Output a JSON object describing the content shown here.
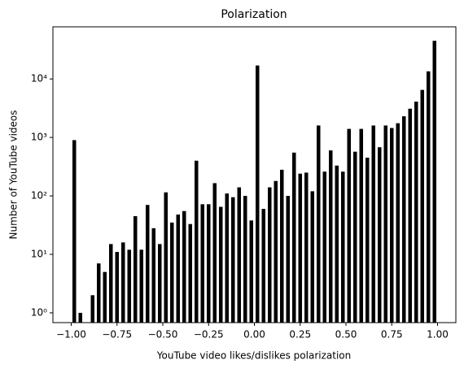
{
  "chart_data": {
    "type": "histogram",
    "title": "Polarization",
    "x_label": "YouTube video likes/dislikes polarization",
    "y_label": "Number of YouTube videos",
    "color": "#000000",
    "log_y": true,
    "rwidth": 0.6,
    "bins": [
      -1,
      -0.9667,
      -0.9333,
      -0.9,
      -0.8667,
      -0.8333,
      -0.8,
      -0.7667,
      -0.7333,
      -0.7,
      -0.6667,
      -0.6333,
      -0.6,
      -0.5667,
      -0.5333,
      -0.5,
      -0.4667,
      -0.4333,
      -0.4,
      -0.3667,
      -0.3333,
      -0.3,
      -0.2667,
      -0.2333,
      -0.2,
      -0.1667,
      -0.1333,
      -0.1,
      -0.0667,
      -0.0333,
      0,
      0.0333,
      0.0667,
      0.1,
      0.1333,
      0.1667,
      0.2,
      0.2333,
      0.2667,
      0.3,
      0.3333,
      0.3667,
      0.4,
      0.4333,
      0.4667,
      0.5,
      0.5333,
      0.5667,
      0.6,
      0.6333,
      0.6667,
      0.7,
      0.7333,
      0.7667,
      0.8,
      0.8333,
      0.8667,
      0.9,
      0.9333,
      0.9667,
      1
    ],
    "values": [
      900,
      1,
      0,
      2,
      7,
      5,
      15,
      11,
      16,
      12,
      45,
      12,
      70,
      28,
      15,
      115,
      35,
      48,
      55,
      33,
      400,
      72,
      72,
      165,
      65,
      110,
      95,
      140,
      100,
      38,
      17000,
      60,
      140,
      180,
      280,
      100,
      550,
      240,
      250,
      120,
      1600,
      260,
      600,
      330,
      260,
      1400,
      570,
      1400,
      450,
      1600,
      680,
      1600,
      1450,
      1750,
      2300,
      3100,
      4100,
      6500,
      13500,
      45000
    ],
    "xlim": [
      -1.1,
      1.1
    ],
    "ylim": [
      0.68,
      78000
    ],
    "xticks": [
      {
        "value": -1,
        "label": "−1.00"
      },
      {
        "value": -0.75,
        "label": "−0.75"
      },
      {
        "value": -0.5,
        "label": "−0.50"
      },
      {
        "value": -0.25,
        "label": "−0.25"
      },
      {
        "value": 0,
        "label": "0.00"
      },
      {
        "value": 0.25,
        "label": "0.25"
      },
      {
        "value": 0.5,
        "label": "0.50"
      },
      {
        "value": 0.75,
        "label": "0.75"
      },
      {
        "value": 1,
        "label": "1.00"
      }
    ],
    "yticks": [
      {
        "value": 1,
        "label": "10⁰"
      },
      {
        "value": 10,
        "label": "10¹"
      },
      {
        "value": 100,
        "label": "10²"
      },
      {
        "value": 1000,
        "label": "10³"
      },
      {
        "value": 10000,
        "label": "10⁴"
      }
    ]
  }
}
